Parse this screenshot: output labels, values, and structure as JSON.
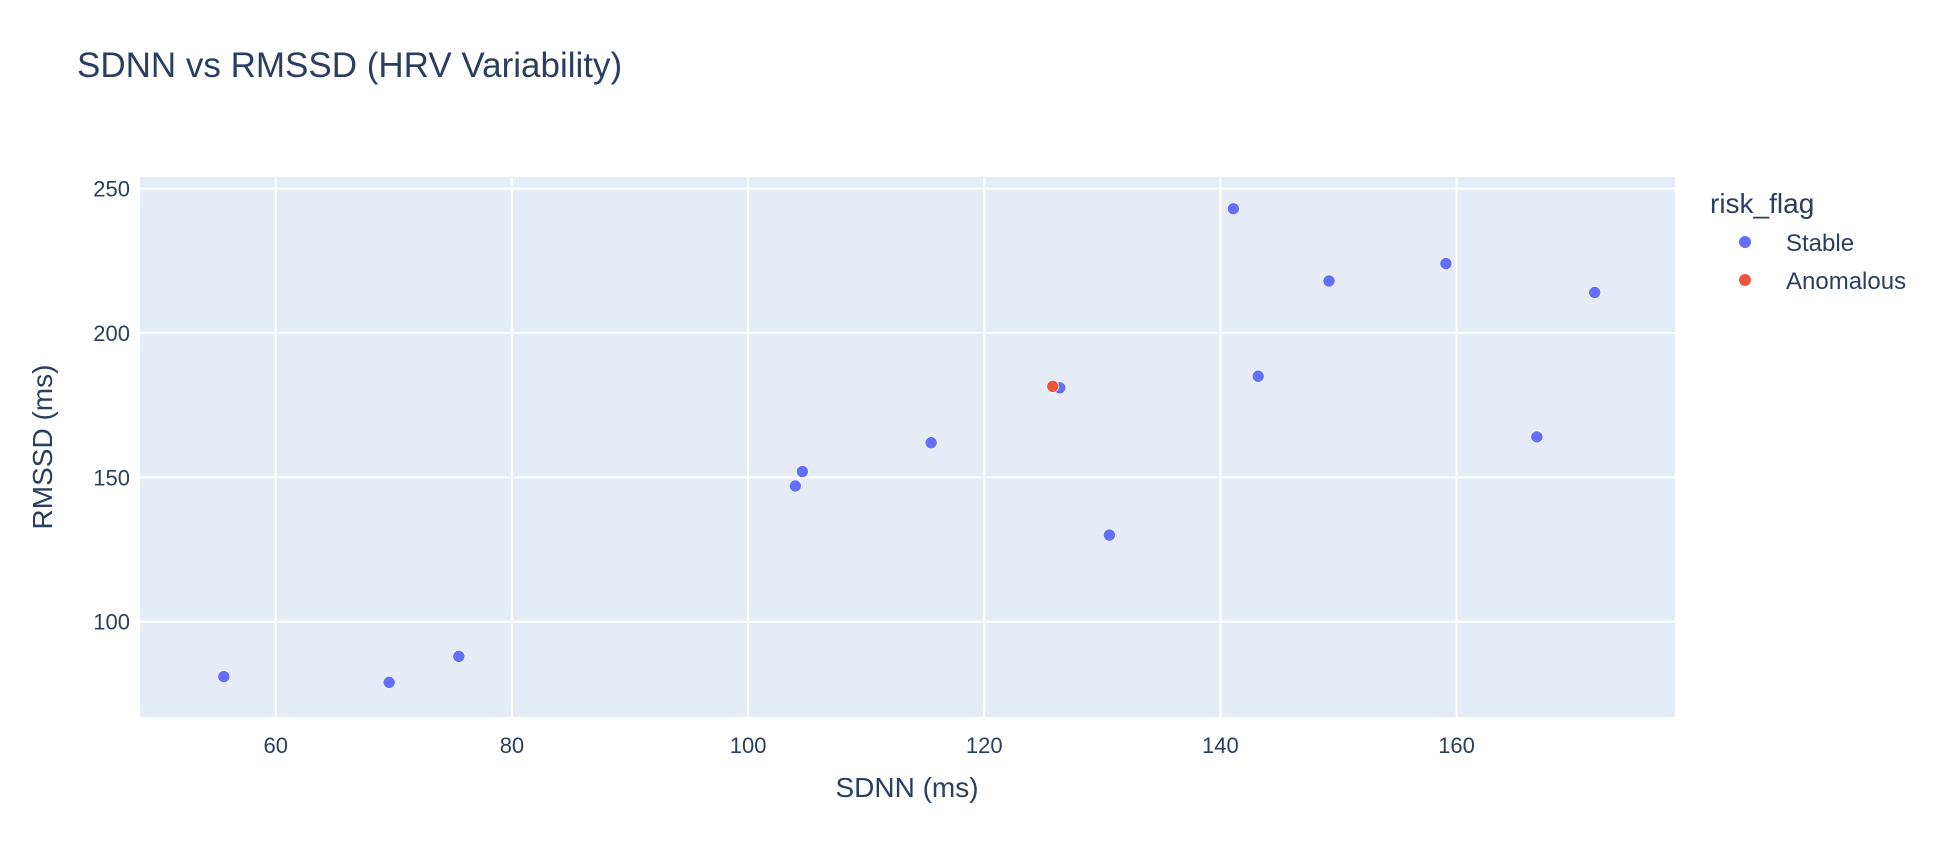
{
  "chart_data": {
    "type": "scatter",
    "title": "SDNN vs RMSSD (HRV Variability)",
    "xlabel": "SDNN (ms)",
    "ylabel": "RMSSD (ms)",
    "xlim": [
      48.5,
      178.5
    ],
    "ylim": [
      67,
      254
    ],
    "xticks": [
      60,
      80,
      100,
      120,
      140,
      160
    ],
    "yticks": [
      100,
      150,
      200,
      250
    ],
    "grid": true,
    "legend": {
      "title": "risk_flag",
      "placement": "right"
    },
    "series": [
      {
        "name": "Stable",
        "color": "#636efa",
        "points": [
          {
            "x": 55.6,
            "y": 81
          },
          {
            "x": 69.6,
            "y": 79
          },
          {
            "x": 75.5,
            "y": 88
          },
          {
            "x": 104.0,
            "y": 147
          },
          {
            "x": 104.6,
            "y": 152
          },
          {
            "x": 115.5,
            "y": 162
          },
          {
            "x": 126.4,
            "y": 181
          },
          {
            "x": 130.6,
            "y": 130
          },
          {
            "x": 141.1,
            "y": 243
          },
          {
            "x": 143.2,
            "y": 185
          },
          {
            "x": 149.2,
            "y": 218
          },
          {
            "x": 159.1,
            "y": 224
          },
          {
            "x": 166.8,
            "y": 164
          },
          {
            "x": 171.7,
            "y": 214
          }
        ]
      },
      {
        "name": "Anomalous",
        "color": "#ef553b",
        "points": [
          {
            "x": 125.8,
            "y": 181.5
          }
        ]
      }
    ]
  }
}
